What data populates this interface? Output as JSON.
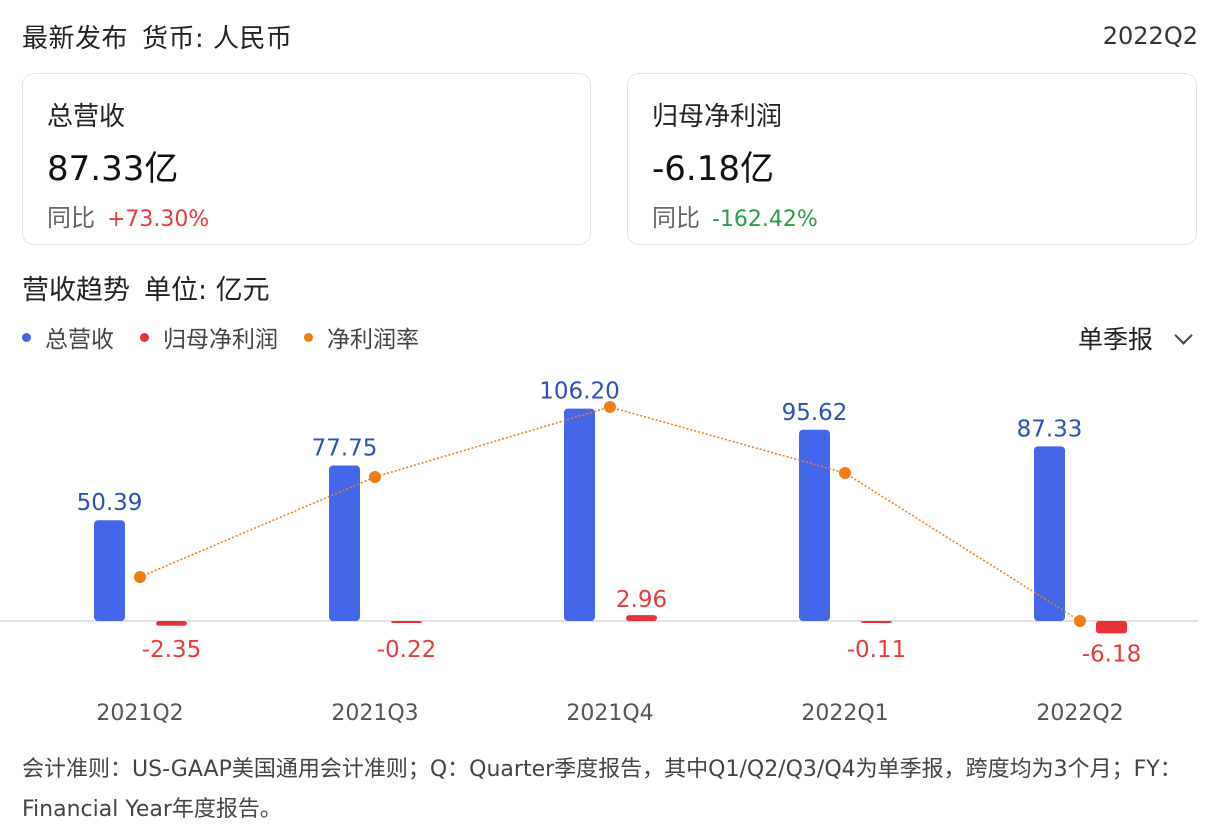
{
  "header": {
    "release_label": "最新发布",
    "currency_label": "货币: 人民币",
    "period": "2022Q2"
  },
  "cards": {
    "revenue": {
      "label": "总营收",
      "value": "87.33亿",
      "yoy_label": "同比",
      "yoy_value": "+73.30%"
    },
    "net_profit": {
      "label": "归母净利润",
      "value": "-6.18亿",
      "yoy_label": "同比",
      "yoy_value": "-162.42%"
    }
  },
  "trend": {
    "title": "营收趋势",
    "unit_label": "单位: 亿元",
    "period_select": "单季报"
  },
  "colors": {
    "revenue": "#4466e8",
    "net_profit": "#e8323a",
    "net_margin": "#f07c14",
    "positive": "#e33d3d",
    "negative": "#2e9a4e"
  },
  "chart_data": {
    "type": "bar",
    "categories": [
      "2021Q2",
      "2021Q3",
      "2021Q4",
      "2022Q1",
      "2022Q2"
    ],
    "series": [
      {
        "name": "总营收",
        "type": "bar",
        "values": [
          50.39,
          77.75,
          106.2,
          95.62,
          87.33
        ],
        "labels": [
          "50.39",
          "77.75",
          "106.20",
          "95.62",
          "87.33"
        ]
      },
      {
        "name": "归母净利润",
        "type": "bar",
        "values": [
          -2.35,
          -0.22,
          2.96,
          -0.11,
          -6.18
        ],
        "labels": [
          "-2.35",
          "-0.22",
          "2.96",
          "-0.11",
          "-6.18"
        ]
      },
      {
        "name": "净利润率",
        "type": "line",
        "values": [
          -4.7,
          -0.3,
          2.8,
          -0.1,
          -7.1
        ]
      }
    ],
    "legend_position": "top-left",
    "grid": false
  },
  "footnote": "会计准则：US-GAAP美国通用会计准则；Q：Quarter季度报告，其中Q1/Q2/Q3/Q4为单季报，跨度均为3个月；FY：Financial Year年度报告。"
}
